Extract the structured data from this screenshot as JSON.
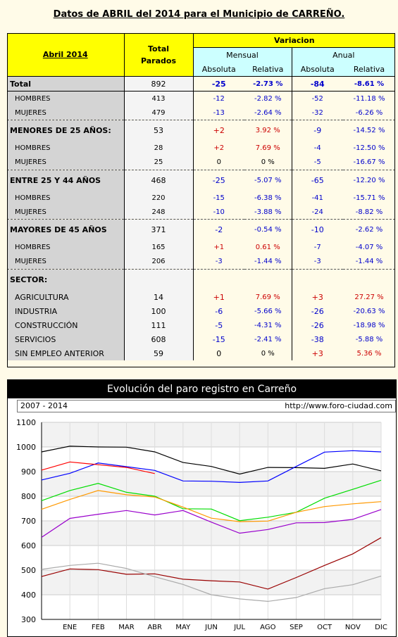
{
  "title": "Datos de ABRIL del 2014 para el Municipio de CARREÑO.",
  "table": {
    "header": {
      "period": "Abril 2014",
      "total_line1": "Total",
      "total_line2": "Parados",
      "variacion": "Variacion",
      "mensual": "Mensual",
      "anual": "Anual",
      "absoluta": "Absoluta",
      "relativa": "Relativa"
    },
    "rows": [
      {
        "label": "Total",
        "total": "892",
        "m_abs": "-25",
        "m_rel": "-2.73 %",
        "a_abs": "-84",
        "a_rel": "-8.61 %",
        "kind": "main"
      },
      {
        "label": "HOMBRES",
        "total": "413",
        "m_abs": "-12",
        "m_rel": "-2.82 %",
        "a_abs": "-52",
        "a_rel": "-11.18 %",
        "kind": "sub"
      },
      {
        "label": "MUJERES",
        "total": "479",
        "m_abs": "-13",
        "m_rel": "-2.64 %",
        "a_abs": "-32",
        "a_rel": "-6.26 %",
        "kind": "sub"
      },
      {
        "label": "MENORES DE 25 AÑOS:",
        "total": "53",
        "m_abs": "+2",
        "m_rel": "3.92 %",
        "a_abs": "-9",
        "a_rel": "-14.52 %",
        "kind": "group"
      },
      {
        "label": "HOMBRES",
        "total": "28",
        "m_abs": "+2",
        "m_rel": "7.69 %",
        "a_abs": "-4",
        "a_rel": "-12.50 %",
        "kind": "sub"
      },
      {
        "label": "MUJERES",
        "total": "25",
        "m_abs": "0",
        "m_rel": "0 %",
        "a_abs": "-5",
        "a_rel": "-16.67 %",
        "kind": "sub"
      },
      {
        "label": "ENTRE 25 Y 44 AÑOS",
        "total": "468",
        "m_abs": "-25",
        "m_rel": "-5.07 %",
        "a_abs": "-65",
        "a_rel": "-12.20 %",
        "kind": "group"
      },
      {
        "label": "HOMBRES",
        "total": "220",
        "m_abs": "-15",
        "m_rel": "-6.38 %",
        "a_abs": "-41",
        "a_rel": "-15.71 %",
        "kind": "sub"
      },
      {
        "label": "MUJERES",
        "total": "248",
        "m_abs": "-10",
        "m_rel": "-3.88 %",
        "a_abs": "-24",
        "a_rel": "-8.82 %",
        "kind": "sub"
      },
      {
        "label": "MAYORES DE 45 AÑOS",
        "total": "371",
        "m_abs": "-2",
        "m_rel": "-0.54 %",
        "a_abs": "-10",
        "a_rel": "-2.62 %",
        "kind": "group"
      },
      {
        "label": "HOMBRES",
        "total": "165",
        "m_abs": "+1",
        "m_rel": "0.61 %",
        "a_abs": "-7",
        "a_rel": "-4.07 %",
        "kind": "sub"
      },
      {
        "label": "MUJERES",
        "total": "206",
        "m_abs": "-3",
        "m_rel": "-1.44 %",
        "a_abs": "-3",
        "a_rel": "-1.44 %",
        "kind": "sub"
      },
      {
        "label": "SECTOR:",
        "total": "",
        "m_abs": "",
        "m_rel": "",
        "a_abs": "",
        "a_rel": "",
        "kind": "group"
      },
      {
        "label": "AGRICULTURA",
        "total": "14",
        "m_abs": "+1",
        "m_rel": "7.69 %",
        "a_abs": "+3",
        "a_rel": "27.27 %",
        "kind": "sector"
      },
      {
        "label": "INDUSTRIA",
        "total": "100",
        "m_abs": "-6",
        "m_rel": "-5.66 %",
        "a_abs": "-26",
        "a_rel": "-20.63 %",
        "kind": "sector"
      },
      {
        "label": "CONSTRUCCIÓN",
        "total": "111",
        "m_abs": "-5",
        "m_rel": "-4.31 %",
        "a_abs": "-26",
        "a_rel": "-18.98 %",
        "kind": "sector"
      },
      {
        "label": "SERVICIOS",
        "total": "608",
        "m_abs": "-15",
        "m_rel": "-2.41 %",
        "a_abs": "-38",
        "a_rel": "-5.88 %",
        "kind": "sector"
      },
      {
        "label": "SIN EMPLEO ANTERIOR",
        "total": "59",
        "m_abs": "0",
        "m_rel": "0 %",
        "a_abs": "+3",
        "a_rel": "5.36 %",
        "kind": "sector"
      }
    ]
  },
  "chart_header": {
    "title": "Evolución del paro registro en Carreño",
    "range": "2007 - 2014",
    "url": "http://www.foro-ciudad.com"
  },
  "chart_data": {
    "type": "line",
    "categories": [
      "",
      "ENE",
      "FEB",
      "MAR",
      "ABR",
      "MAY",
      "JUN",
      "JUL",
      "AGO",
      "SEP",
      "OCT",
      "NOV",
      "DIC"
    ],
    "ylim": [
      300,
      1100
    ],
    "yticks": [
      300,
      400,
      500,
      600,
      700,
      800,
      900,
      1000,
      1100
    ],
    "grid": true,
    "series": [
      {
        "color": "#000000",
        "values": [
          980,
          1003,
          1000,
          999,
          980,
          937,
          921,
          890,
          917,
          916,
          913,
          931,
          903
        ]
      },
      {
        "color": "#0000ff",
        "values": [
          866,
          893,
          935,
          920,
          905,
          862,
          861,
          856,
          862,
          921,
          979,
          985,
          980
        ]
      },
      {
        "color": "#ff0000",
        "values": [
          906,
          939,
          928,
          917,
          892,
          null,
          null,
          null,
          null,
          null,
          null,
          null,
          null
        ]
      },
      {
        "color": "#00dd00",
        "values": [
          782,
          823,
          852,
          816,
          800,
          749,
          748,
          701,
          715,
          735,
          792,
          828,
          865
        ]
      },
      {
        "color": "#ff9900",
        "values": [
          747,
          787,
          823,
          806,
          797,
          756,
          711,
          697,
          699,
          735,
          758,
          769,
          778
        ]
      },
      {
        "color": "#9900cc",
        "values": [
          633,
          710,
          727,
          742,
          724,
          742,
          695,
          650,
          665,
          692,
          693,
          706,
          746
        ]
      },
      {
        "color": "#990000",
        "values": [
          474,
          505,
          502,
          483,
          485,
          463,
          457,
          452,
          423,
          470,
          519,
          566,
          632
        ]
      },
      {
        "color": "#aaaaaa",
        "values": [
          503,
          519,
          528,
          507,
          473,
          442,
          400,
          383,
          373,
          389,
          425,
          441,
          476
        ]
      }
    ]
  }
}
